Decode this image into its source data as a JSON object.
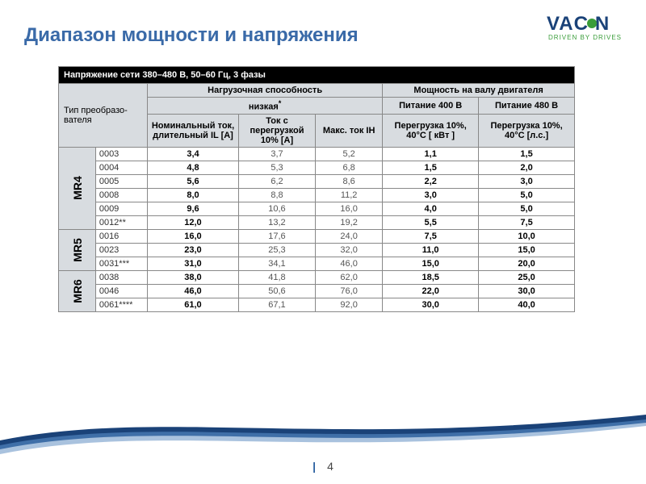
{
  "logo": {
    "brand": "VACON",
    "tagline": "DRIVEN BY DRIVES"
  },
  "title": "Диапазон мощности и напряжения",
  "table": {
    "banner": "Напряжение сети 380–480 В, 50–60 Гц, 3 фазы",
    "type_label": "Тип преобразо-вателя",
    "load_label": "Нагрузочная способность",
    "shaft_label": "Мощность на валу двигателя",
    "low_label": "низкая",
    "col_inom": "Номинальный ток, длительный IL\n[А]",
    "col_i110": "Ток с перегрузкой 10%\n[А]",
    "col_imax": "Макс. ток IH",
    "col_400": "Питание 400 В",
    "col_480": "Питание 480 В",
    "col_400_sub": "Перегрузка 10%, 40°C\n[ кВт ]",
    "col_480_sub": "Перегрузка 10%, 40°C\n[л.с.]",
    "groups": [
      {
        "name": "MR4",
        "rows": [
          {
            "model": "0003",
            "v": [
              "3,4",
              "3,7",
              "5,2",
              "1,1",
              "1,5"
            ]
          },
          {
            "model": "0004",
            "v": [
              "4,8",
              "5,3",
              "6,8",
              "1,5",
              "2,0"
            ]
          },
          {
            "model": "0005",
            "v": [
              "5,6",
              "6,2",
              "8,6",
              "2,2",
              "3,0"
            ]
          },
          {
            "model": "0008",
            "v": [
              "8,0",
              "8,8",
              "11,2",
              "3,0",
              "5,0"
            ]
          },
          {
            "model": "0009",
            "v": [
              "9,6",
              "10,6",
              "16,0",
              "4,0",
              "5,0"
            ]
          },
          {
            "model": "0012**",
            "v": [
              "12,0",
              "13,2",
              "19,2",
              "5,5",
              "7,5"
            ]
          }
        ]
      },
      {
        "name": "MR5",
        "rows": [
          {
            "model": "0016",
            "v": [
              "16,0",
              "17,6",
              "24,0",
              "7,5",
              "10,0"
            ]
          },
          {
            "model": "0023",
            "v": [
              "23,0",
              "25,3",
              "32,0",
              "11,0",
              "15,0"
            ]
          },
          {
            "model": "0031***",
            "v": [
              "31,0",
              "34,1",
              "46,0",
              "15,0",
              "20,0"
            ]
          }
        ]
      },
      {
        "name": "MR6",
        "rows": [
          {
            "model": "0038",
            "v": [
              "38,0",
              "41,8",
              "62,0",
              "18,5",
              "25,0"
            ]
          },
          {
            "model": "0046",
            "v": [
              "46,0",
              "50,6",
              "76,0",
              "22,0",
              "30,0"
            ]
          },
          {
            "model": "0061****",
            "v": [
              "61,0",
              "67,1",
              "92,0",
              "30,0",
              "40,0"
            ]
          }
        ]
      }
    ]
  },
  "page_number": "4",
  "colors": {
    "title": "#3a6aa8",
    "wave_dark": "#1a4278",
    "wave_mid": "#3f6fa8",
    "wave_light": "#a9c2de"
  }
}
